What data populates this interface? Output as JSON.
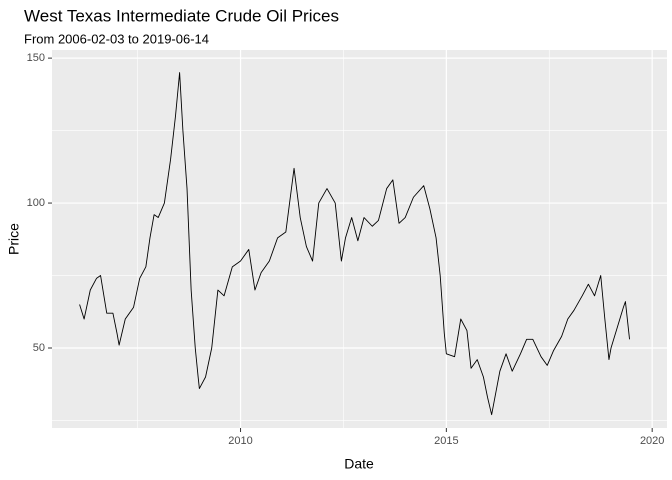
{
  "chart_data": {
    "type": "line",
    "title": "West Texas Intermediate Crude Oil Prices",
    "subtitle": "From 2006-02-03 to 2019-06-14",
    "xlabel": "Date",
    "ylabel": "Price",
    "x": [
      2006.09,
      2006.2,
      2006.35,
      2006.5,
      2006.6,
      2006.75,
      2006.9,
      2007.0,
      2007.05,
      2007.2,
      2007.4,
      2007.55,
      2007.7,
      2007.8,
      2007.9,
      2008.0,
      2008.15,
      2008.3,
      2008.42,
      2008.52,
      2008.6,
      2008.7,
      2008.8,
      2008.9,
      2008.97,
      2009.0,
      2009.15,
      2009.3,
      2009.45,
      2009.6,
      2009.8,
      2010.0,
      2010.2,
      2010.35,
      2010.5,
      2010.7,
      2010.9,
      2011.1,
      2011.3,
      2011.45,
      2011.6,
      2011.75,
      2011.9,
      2012.1,
      2012.3,
      2012.45,
      2012.55,
      2012.7,
      2012.85,
      2013.0,
      2013.2,
      2013.35,
      2013.55,
      2013.7,
      2013.85,
      2014.0,
      2014.2,
      2014.45,
      2014.6,
      2014.75,
      2014.85,
      2014.95,
      2015.0,
      2015.2,
      2015.35,
      2015.5,
      2015.6,
      2015.75,
      2015.9,
      2016.0,
      2016.1,
      2016.3,
      2016.45,
      2016.6,
      2016.8,
      2016.95,
      2017.1,
      2017.3,
      2017.45,
      2017.6,
      2017.8,
      2017.95,
      2018.1,
      2018.3,
      2018.45,
      2018.6,
      2018.75,
      2018.85,
      2018.95,
      2019.0,
      2019.15,
      2019.3,
      2019.35,
      2019.45
    ],
    "series": [
      {
        "name": "Price",
        "color": "#000000",
        "values": [
          65,
          60,
          70,
          74,
          75,
          62,
          62,
          55,
          51,
          60,
          64,
          74,
          78,
          88,
          96,
          95,
          100,
          115,
          130,
          145,
          125,
          105,
          70,
          50,
          40,
          36,
          40,
          50,
          70,
          68,
          78,
          80,
          84,
          70,
          76,
          80,
          88,
          90,
          112,
          95,
          85,
          80,
          100,
          105,
          100,
          80,
          88,
          95,
          87,
          95,
          92,
          94,
          105,
          108,
          93,
          95,
          102,
          106,
          98,
          88,
          75,
          55,
          48,
          47,
          60,
          56,
          43,
          46,
          40,
          33,
          27,
          42,
          48,
          42,
          48,
          53,
          53,
          47,
          44,
          49,
          54,
          60,
          63,
          68,
          72,
          68,
          75,
          60,
          46,
          50,
          57,
          64,
          66,
          53
        ]
      }
    ],
    "xlim": [
      2005.42,
      2020.36
    ],
    "xticks": [
      2010,
      2015,
      2020
    ],
    "minor_xticks": [
      2007.5,
      2012.5,
      2017.5
    ],
    "ylim": [
      22.4,
      152.8
    ],
    "yticks": [
      50,
      100,
      150
    ],
    "minor_yticks": [
      25,
      75,
      125
    ],
    "grid": true,
    "panel_color": "#EBEBEB",
    "grid_color": "#FFFFFF"
  }
}
